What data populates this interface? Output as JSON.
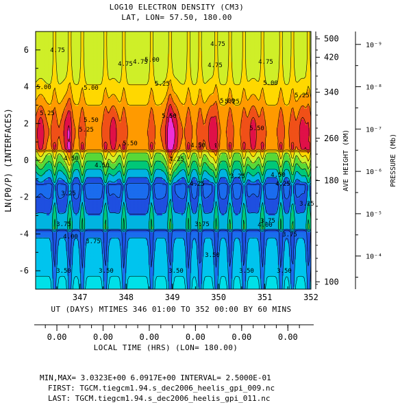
{
  "title_line1": "LOG10 ELECTRON DENSITY (CM3)",
  "title_line2": "LAT, LON= 57.50,   180.00",
  "y_axis_label": "LN(P0/P) (INTERFACES)",
  "x_axis_label": "UT (DAYS) MTIMES 346 01:00 TO 352 00:00 BY    60 MINS",
  "local_time_label": "LOCAL TIME (HRS) (LON= 180.00)",
  "height_axis_label": "AVE HEIGHT (KM)",
  "pressure_axis_label": "PRESSURE (Mb)",
  "info": {
    "minmax": "MIN,MAX=  3.0323E+00  6.0917E+00 INTERVAL=  2.5000E-01",
    "first": "FIRST: TGCM.tiegcm1.94.s_dec2006_heelis_gpi_009.nc",
    "last": "LAST:  TGCM.tiegcm1.94.s_dec2006_heelis_gpi_011.nc"
  },
  "contour_labels": [
    "4.75",
    "4.75",
    "4.75",
    "4.75",
    "4.75",
    "4.75",
    "5.00",
    "5.00",
    "5.00",
    "5.00",
    "5.00",
    "5.25",
    "5.25",
    "5.25",
    "5.25",
    "5.25",
    "5.50",
    "5.50",
    "5.50",
    "5.50",
    "4.50",
    "4.50",
    "4.50",
    "4.50",
    "4.25",
    "4.25",
    "4.25",
    "4.00",
    "4.00",
    "3.75",
    "3.75",
    "3.75",
    "3.75",
    "3.75",
    "3.50",
    "3.50",
    "3.50",
    "3.50",
    "3.50",
    "3.50",
    "3.25",
    "3.25",
    "3.25"
  ],
  "chart_data": {
    "type": "heatmap",
    "title": "LOG10 ELECTRON DENSITY (CM3)",
    "subtitle": "LAT, LON= 57.50,   180.00",
    "xlabel": "UT (DAYS) MTIMES 346 01:00 TO 352 00:00 BY    60 MINS",
    "ylabel": "LN(P0/P) (INTERFACES)",
    "xlim": [
      346.04,
      352.0
    ],
    "ylim": [
      -7.0,
      7.0
    ],
    "x_ticks": [
      347,
      348,
      349,
      350,
      351,
      352
    ],
    "y_ticks": [
      -6,
      -4,
      -2,
      0,
      2,
      4,
      6
    ],
    "local_time_ticks": [
      "0.00",
      "0.00",
      "0.00",
      "0.00",
      "0.00",
      "0.00"
    ],
    "local_time_tick_days": [
      346.5,
      347.5,
      348.5,
      349.5,
      350.5,
      351.5
    ],
    "height_km_ticks": [
      {
        "label": "500",
        "lnp": 6.6
      },
      {
        "label": "420",
        "lnp": 5.6
      },
      {
        "label": "340",
        "lnp": 3.7
      },
      {
        "label": "260",
        "lnp": 1.2
      },
      {
        "label": "180",
        "lnp": -1.1
      },
      {
        "label": "100",
        "lnp": -6.6
      }
    ],
    "pressure_mb_ticks": [
      {
        "label": "10⁻⁹",
        "lnp": 6.3
      },
      {
        "label": "10⁻⁸",
        "lnp": 4.0
      },
      {
        "label": "10⁻⁷",
        "lnp": 1.7
      },
      {
        "label": "10⁻⁶",
        "lnp": -0.6
      },
      {
        "label": "10⁻⁵",
        "lnp": -2.9
      },
      {
        "label": "10⁻⁴",
        "lnp": -5.2
      }
    ],
    "min": 3.0323,
    "max": 6.0917,
    "interval": 0.25,
    "contour_levels": [
      3.25,
      3.5,
      3.75,
      4.0,
      4.25,
      4.5,
      4.75,
      5.0,
      5.25,
      5.5,
      5.75,
      6.0
    ],
    "color_levels": [
      {
        "min": 3.0,
        "color": "#00e0e8"
      },
      {
        "min": 3.25,
        "color": "#00c4ee"
      },
      {
        "min": 3.5,
        "color": "#1a6cee"
      },
      {
        "min": 3.75,
        "color": "#1e4fe0"
      },
      {
        "min": 4.0,
        "color": "#00b4e0"
      },
      {
        "min": 4.25,
        "color": "#00c878"
      },
      {
        "min": 4.5,
        "color": "#58d838"
      },
      {
        "min": 4.75,
        "color": "#cfef28"
      },
      {
        "min": 5.0,
        "color": "#ffd800"
      },
      {
        "min": 5.25,
        "color": "#ff9a00"
      },
      {
        "min": 5.5,
        "color": "#f05018"
      },
      {
        "min": 5.75,
        "color": "#e01048"
      },
      {
        "min": 6.0,
        "color": "#ee30d8"
      }
    ],
    "daily_minima_days": [
      346.45,
      346.78,
      347.05,
      347.55,
      347.95,
      348.55,
      348.95,
      349.35,
      349.6,
      349.95,
      350.25,
      350.55,
      350.95,
      351.35,
      351.6,
      351.95
    ],
    "daily_maxima_days": [
      346.15,
      346.72,
      347.72,
      348.92,
      349.05,
      349.85,
      350.75,
      351.82
    ]
  }
}
